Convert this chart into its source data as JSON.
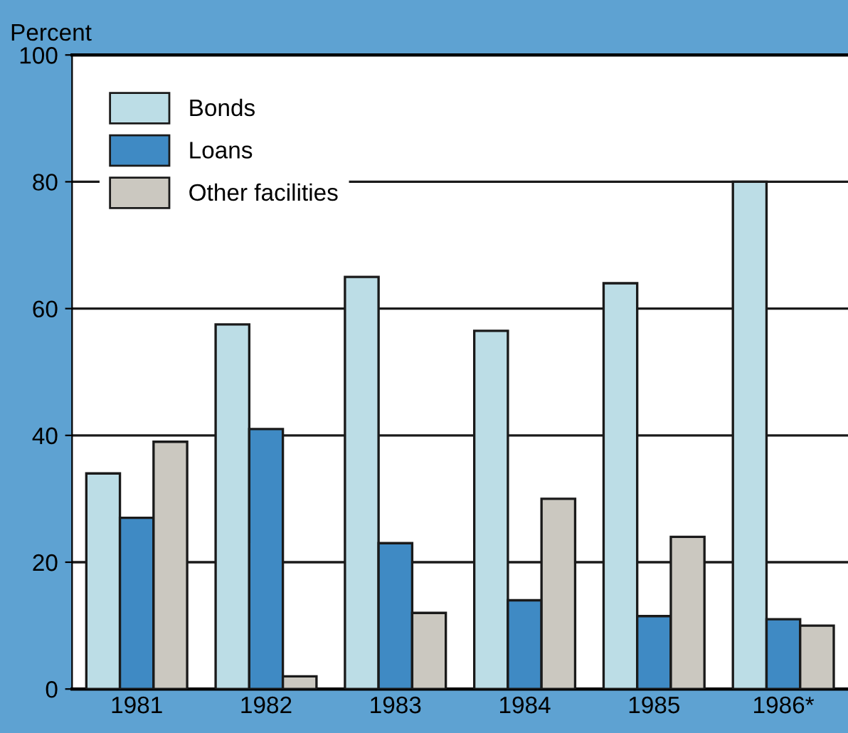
{
  "chart_data": {
    "type": "bar",
    "ylabel": "Percent",
    "categories": [
      "1981",
      "1982",
      "1983",
      "1984",
      "1985",
      "1986*"
    ],
    "series": [
      {
        "name": "Bonds",
        "color": "#bcdde6",
        "values": [
          34,
          57.5,
          65,
          56.5,
          64,
          80
        ]
      },
      {
        "name": "Loans",
        "color": "#3f8ac4",
        "values": [
          27,
          41,
          23,
          14,
          11.5,
          11
        ]
      },
      {
        "name": "Other facilities",
        "color": "#cbc8c0",
        "values": [
          39,
          2,
          12,
          30,
          24,
          10
        ]
      }
    ],
    "ylim": [
      0,
      100
    ],
    "yticks": [
      0,
      20,
      40,
      60,
      80,
      100
    ],
    "grid": "y",
    "legend": "top left"
  }
}
